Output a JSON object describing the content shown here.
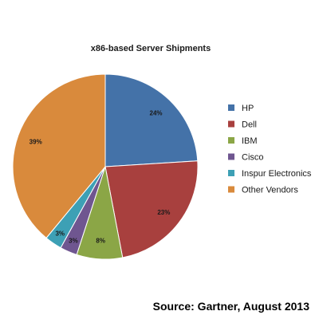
{
  "chart_data": {
    "type": "pie",
    "title": "x86-based Server Shipments",
    "slices": [
      {
        "label": "HP",
        "value": 24,
        "value_label": "24%",
        "color": "#4472A8"
      },
      {
        "label": "Dell",
        "value": 23,
        "value_label": "23%",
        "color": "#A8403E"
      },
      {
        "label": "IBM",
        "value": 8,
        "value_label": "8%",
        "color": "#8BA646"
      },
      {
        "label": "Cisco",
        "value": 3,
        "value_label": "3%",
        "color": "#6F5690"
      },
      {
        "label": "Inspur Electronics",
        "value": 3,
        "value_label": "3%",
        "color": "#3DA0B5"
      },
      {
        "label": "Other Vendors",
        "value": 39,
        "value_label": "39%",
        "color": "#D98A3C"
      }
    ],
    "legend_position": "right",
    "start": "top, clockwise"
  },
  "source": "Source: Gartner, August 2013"
}
